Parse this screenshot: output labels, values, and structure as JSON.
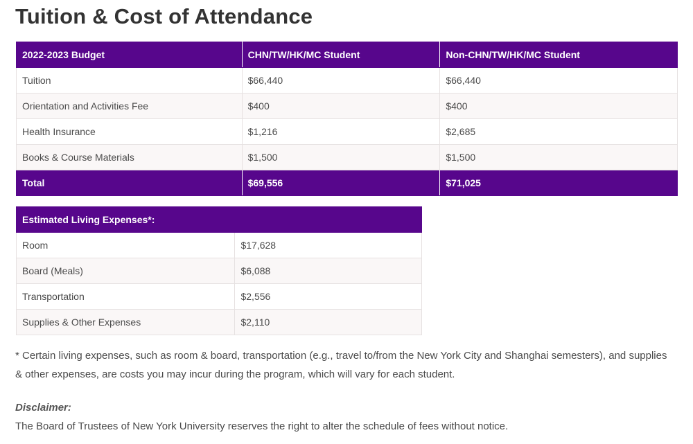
{
  "page": {
    "title": "Tuition & Cost of Attendance"
  },
  "budget_table": {
    "headers": [
      "2022-2023 Budget",
      "CHN/TW/HK/MC Student",
      "Non-CHN/TW/HK/MC Student"
    ],
    "rows": [
      [
        "Tuition",
        "$66,440",
        "$66,440"
      ],
      [
        "Orientation and Activities Fee",
        "$400",
        "$400"
      ],
      [
        "Health Insurance",
        "$1,216",
        "$2,685"
      ],
      [
        "Books & Course Materials",
        "$1,500",
        "$1,500"
      ]
    ],
    "total": [
      "Total",
      "$69,556",
      "$71,025"
    ]
  },
  "living_table": {
    "header": "Estimated Living Expenses*:",
    "rows": [
      [
        "Room",
        "$17,628"
      ],
      [
        "Board (Meals)",
        "$6,088"
      ],
      [
        "Transportation",
        "$2,556"
      ],
      [
        "Supplies & Other Expenses",
        "$2,110"
      ]
    ]
  },
  "footnote": "* Certain living expenses, such as room & board, transportation (e.g., travel to/from the New York City and Shanghai semesters), and supplies & other expenses, are costs you may incur during the program, which will vary for each student.",
  "disclaimer": {
    "title": "Disclaimer:",
    "text": "The Board of Trustees of New York University reserves the right to alter the schedule of fees without notice."
  },
  "colors": {
    "brand_purple": "#57068c"
  }
}
